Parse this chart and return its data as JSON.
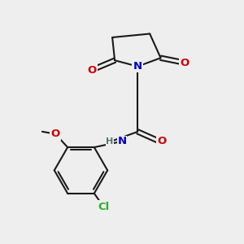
{
  "background_color": "#eeeeee",
  "bond_color": "#1a1a1a",
  "bond_lw": 1.5,
  "atom_colors": {
    "O": "#cc0000",
    "N": "#0000bb",
    "Cl": "#33aa33",
    "H": "#557777"
  },
  "font_size": 9.5
}
